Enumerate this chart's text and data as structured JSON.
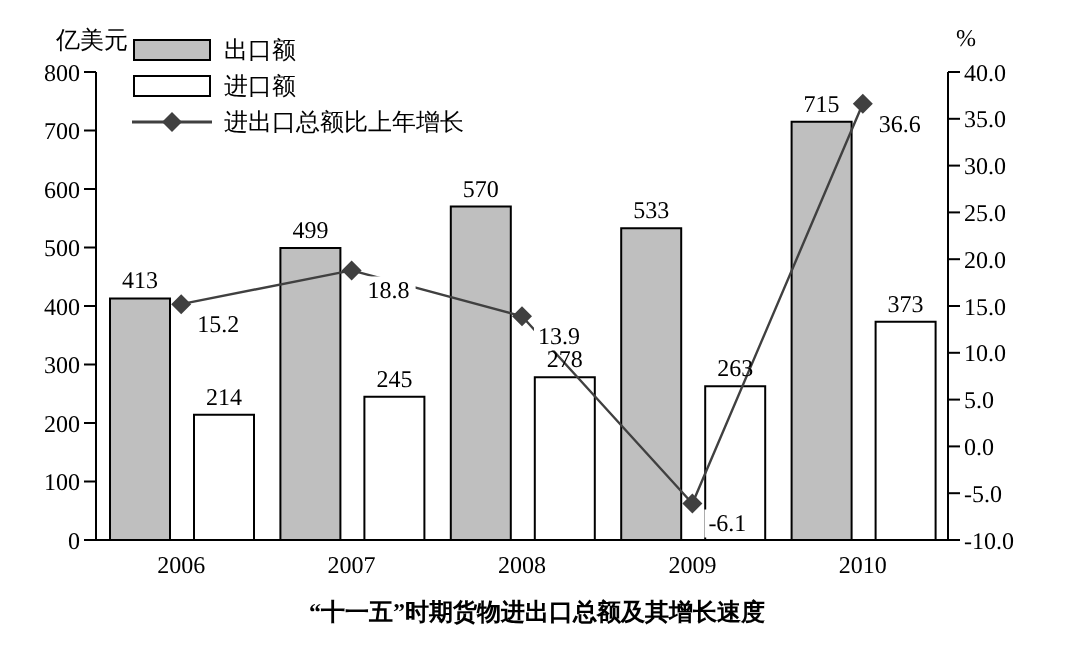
{
  "chart_data": {
    "type": "bar",
    "title": "“十一五”时期货物进出口总额及其增长速度",
    "ylabel": "亿美元",
    "y2label": "%",
    "categories": [
      "2006",
      "2007",
      "2008",
      "2009",
      "2010"
    ],
    "series": [
      {
        "name": "出口额",
        "color": "#bfbfbf",
        "values": [
          413,
          499,
          570,
          533,
          715
        ]
      },
      {
        "name": "进口额",
        "color": "#ffffff",
        "values": [
          214,
          245,
          278,
          263,
          373
        ]
      },
      {
        "name": "进出口总额比上年增长",
        "type": "line",
        "axis": "y2",
        "color": "#404040",
        "values": [
          15.2,
          18.8,
          13.9,
          -6.1,
          36.6
        ]
      }
    ],
    "ylim": [
      0,
      800
    ],
    "yticks": [
      0,
      100,
      200,
      300,
      400,
      500,
      600,
      700,
      800
    ],
    "y2lim": [
      -10,
      40
    ],
    "y2ticks": [
      {
        "value": -10,
        "label": "-10.0"
      },
      {
        "value": -5,
        "label": "-5.0"
      },
      {
        "value": 0,
        "label": "0.0"
      },
      {
        "value": 5,
        "label": "5.0"
      },
      {
        "value": 10,
        "label": "10.0"
      },
      {
        "value": 15,
        "label": "15.0"
      },
      {
        "value": 20,
        "label": "20.0"
      },
      {
        "value": 25,
        "label": "25.0"
      },
      {
        "value": 30,
        "label": "30.0"
      },
      {
        "value": 35,
        "label": "35.0"
      },
      {
        "value": 40,
        "label": "40.0"
      }
    ],
    "data_labels": true,
    "legend": "top left",
    "grid": false,
    "marker": "diamond",
    "line_style": "solid"
  }
}
